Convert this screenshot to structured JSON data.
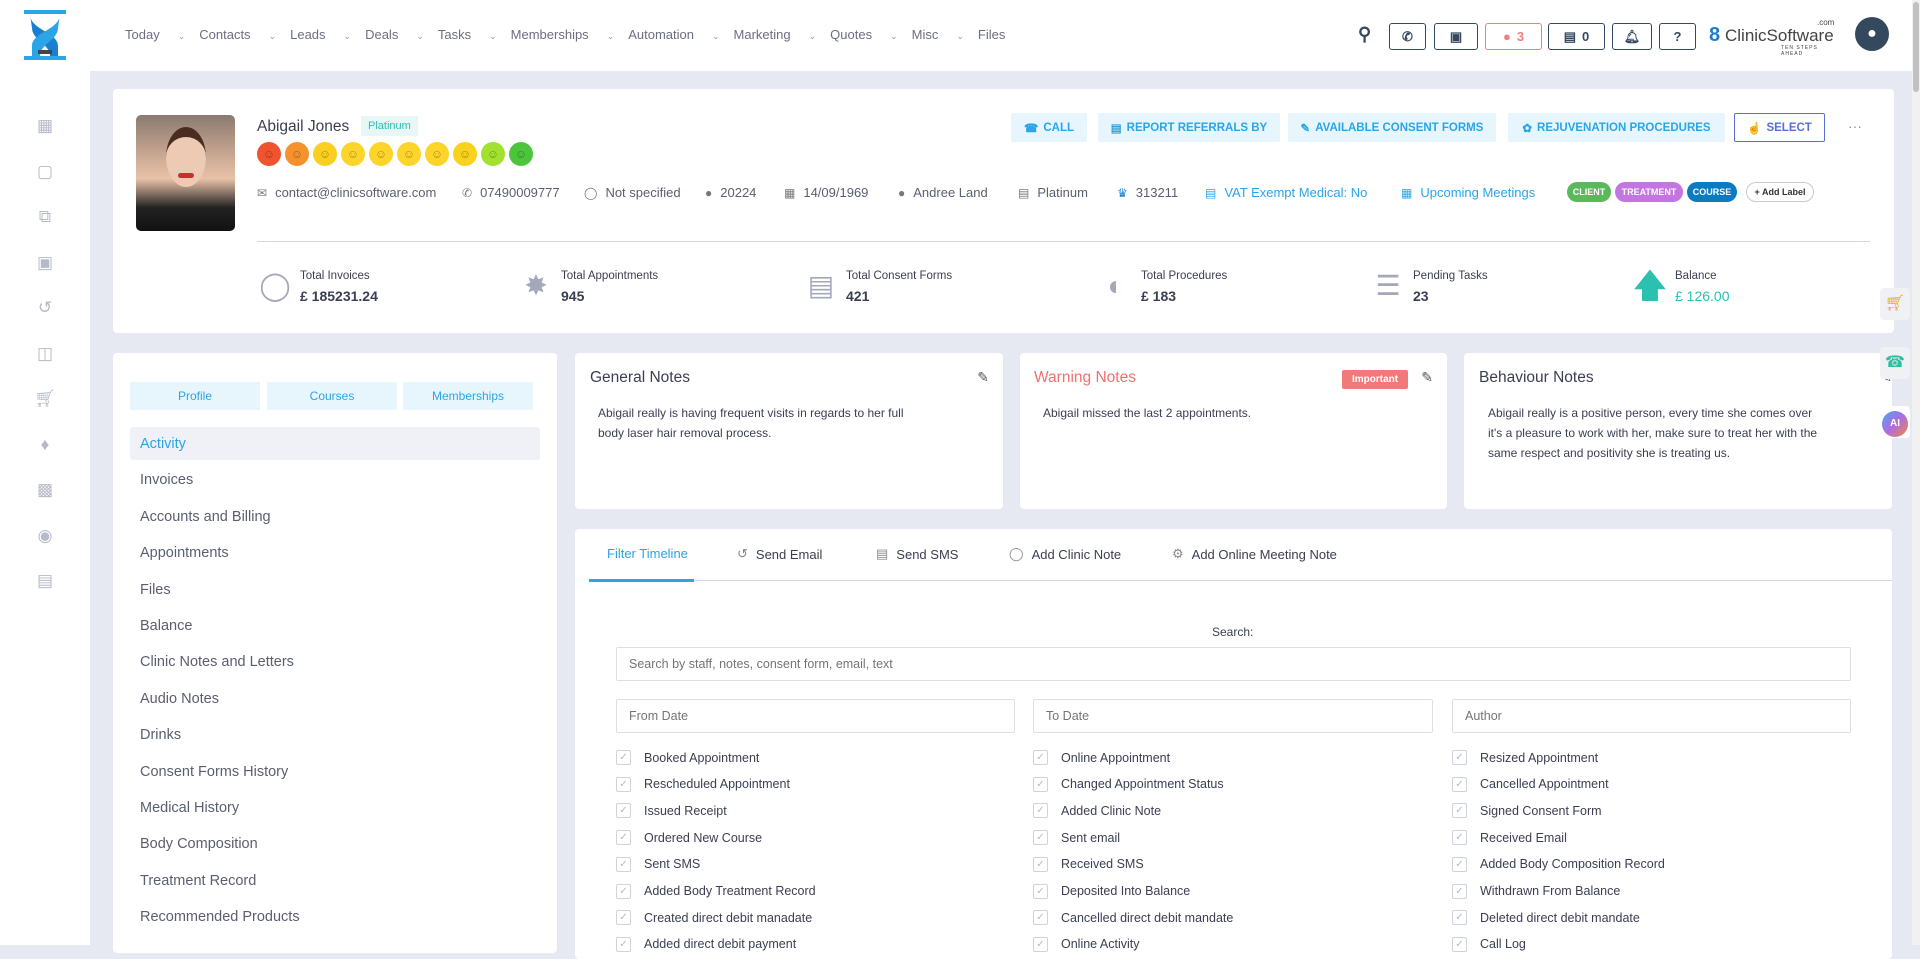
{
  "nav": {
    "items": [
      "Today",
      "Contacts",
      "Leads",
      "Deals",
      "Tasks",
      "Memberships",
      "Automation",
      "Marketing",
      "Quotes",
      "Misc",
      "Files"
    ],
    "chat_count": "3",
    "store_count": "0",
    "brand": "ClinicSoftware",
    "brand_suffix": ".com",
    "brand_tagline": "TEN STEPS AHEAD"
  },
  "sidebar": {
    "icons": [
      "calendar-icon",
      "box-icon",
      "copy-icon",
      "calendar-download-icon",
      "history-icon",
      "gift-icon",
      "cart-icon",
      "tag-icon",
      "report-icon",
      "user-circle-icon",
      "lock-icon"
    ]
  },
  "profile": {
    "name": "Abigail Jones",
    "tier": "Platinum",
    "mood_colors": [
      "#f0532d",
      "#f6922e",
      "#fbcf1f",
      "#fdd52a",
      "#fdd52a",
      "#fdd52a",
      "#fdd52a",
      "#f8d21c",
      "#a2e22e",
      "#4cc53c"
    ],
    "email": "contact@clinicsoftware.com",
    "phone": "07490009777",
    "gender": "Not specified",
    "id": "20224",
    "dob": "14/09/1969",
    "staff": "Andree Land",
    "membership": "Platinum",
    "points": "313211",
    "vat": "VAT Exempt Medical: No",
    "meetings": "Upcoming Meetings",
    "labels": [
      {
        "text": "CLIENT",
        "color": "#5cb85c"
      },
      {
        "text": "TREATMENT",
        "color": "#c376e0"
      },
      {
        "text": "COURSE",
        "color": "#0b7bc1"
      }
    ],
    "add_label": "+ Add Label",
    "actions": {
      "call": "CALL",
      "referrals": "REPORT REFERRALS BY",
      "consent": "AVAILABLE CONSENT FORMS",
      "rejuv": "REJUVENATION PROCEDURES",
      "select": "SELECT"
    },
    "stats": [
      {
        "label": "Total Invoices",
        "value": "£ 185231.24"
      },
      {
        "label": "Total Appointments",
        "value": "945"
      },
      {
        "label": "Total Consent Forms",
        "value": "421"
      },
      {
        "label": "Total Procedures",
        "value": "£ 183"
      },
      {
        "label": "Pending Tasks",
        "value": "23"
      },
      {
        "label": "Balance",
        "value": "£ 126.00"
      }
    ]
  },
  "left": {
    "tabs": [
      "Profile",
      "Courses",
      "Memberships"
    ],
    "menu": [
      "Activity",
      "Invoices",
      "Accounts and Billing",
      "Appointments",
      "Files",
      "Balance",
      "Clinic Notes and Letters",
      "Audio Notes",
      "Drinks",
      "Consent Forms History",
      "Medical History",
      "Body Composition",
      "Treatment Record",
      "Recommended Products"
    ]
  },
  "notes": {
    "general": {
      "title": "General Notes",
      "body": "Abigail really is having frequent visits in regards to her full body laser hair removal process."
    },
    "warning": {
      "title": "Warning Notes",
      "badge": "Important",
      "body": "Abigail missed the last 2 appointments."
    },
    "behaviour": {
      "title": "Behaviour Notes",
      "body": "Abigail really is a positive person, every time she comes over it's a pleasure to work with her, make sure to treat her with the same respect and positivity she is treating us."
    }
  },
  "timeline": {
    "tabs": [
      "Filter Timeline",
      "Send Email",
      "Send SMS",
      "Add Clinic Note",
      "Add Online Meeting Note"
    ],
    "search_label": "Search:",
    "search_placeholder": "Search by staff, notes, consent form, email, text",
    "from_placeholder": "From Date",
    "to_placeholder": "To Date",
    "author_placeholder": "Author",
    "filters": [
      [
        "Booked Appointment",
        "Online Appointment",
        "Resized Appointment"
      ],
      [
        "Rescheduled Appointment",
        "Changed Appointment Status",
        "Cancelled Appointment"
      ],
      [
        "Issued Receipt",
        "Added Clinic Note",
        "Signed Consent Form"
      ],
      [
        "Ordered New Course",
        "Sent email",
        "Received Email"
      ],
      [
        "Sent SMS",
        "Received SMS",
        "Added Body Composition Record"
      ],
      [
        "Added Body Treatment Record",
        "Deposited Into Balance",
        "Withdrawn From Balance"
      ],
      [
        "Created direct debit manadate",
        "Cancelled direct debit mandate",
        "Deleted direct debit mandate"
      ],
      [
        "Added direct debit payment",
        "Online Activity",
        "Call Log"
      ]
    ]
  }
}
